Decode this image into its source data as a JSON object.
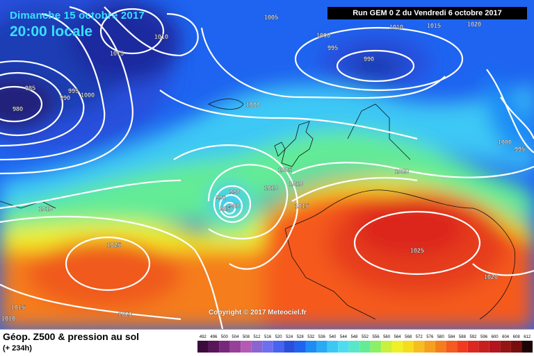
{
  "header": {
    "date": "Dimanche 15 octobre 2017",
    "time": "20:00 locale",
    "run": "Run GEM 0 Z du Vendredi 6 octobre 2017"
  },
  "copyright": "Copyright © 2017 Meteociel.fr",
  "footer": {
    "title": "Géop. Z500 & pression au sol",
    "subtitle": "(+ 234h)"
  },
  "isobar_labels": [
    {
      "text": "1005"
    },
    {
      "text": "1010"
    },
    {
      "text": "1015"
    },
    {
      "text": "1010"
    },
    {
      "text": "1015"
    },
    {
      "text": "1020"
    },
    {
      "text": "1000"
    },
    {
      "text": "995"
    },
    {
      "text": "990"
    },
    {
      "text": "985"
    },
    {
      "text": "980"
    },
    {
      "text": "990"
    },
    {
      "text": "995"
    },
    {
      "text": "1000"
    },
    {
      "text": "1000"
    },
    {
      "text": "1005"
    },
    {
      "text": "1010"
    },
    {
      "text": "1010"
    },
    {
      "text": "995"
    },
    {
      "text": "990"
    },
    {
      "text": "985"
    },
    {
      "text": "980"
    },
    {
      "text": "1015"
    },
    {
      "text": "1020"
    },
    {
      "text": "1025"
    },
    {
      "text": "1025"
    },
    {
      "text": "1020"
    },
    {
      "text": "1010"
    },
    {
      "text": "1015"
    },
    {
      "text": "1010"
    },
    {
      "text": "1000"
    },
    {
      "text": "995"
    },
    {
      "text": "1020"
    }
  ],
  "color_scale": {
    "values": [
      "492",
      "496",
      "500",
      "504",
      "508",
      "512",
      "516",
      "520",
      "524",
      "528",
      "532",
      "536",
      "540",
      "544",
      "548",
      "552",
      "556",
      "560",
      "564",
      "568",
      "572",
      "576",
      "580",
      "584",
      "588",
      "592",
      "596",
      "600",
      "604",
      "608",
      "612"
    ],
    "colors": [
      "#3c0a3c",
      "#5a145a",
      "#78287a",
      "#96409a",
      "#b45ab4",
      "#8c64d2",
      "#6e6ef0",
      "#4664f0",
      "#2850dc",
      "#1e64f0",
      "#1e8cf5",
      "#28aaf5",
      "#3cc8f5",
      "#50dcf0",
      "#5ae6c8",
      "#64eb96",
      "#8cf064",
      "#c8f03c",
      "#f0f028",
      "#f5dc1e",
      "#f5be1e",
      "#f5a01e",
      "#f57d1e",
      "#f55a1e",
      "#f03c1e",
      "#dc281e",
      "#c81e1e",
      "#b4141e",
      "#961414",
      "#780f0f",
      "#1e0505"
    ]
  }
}
